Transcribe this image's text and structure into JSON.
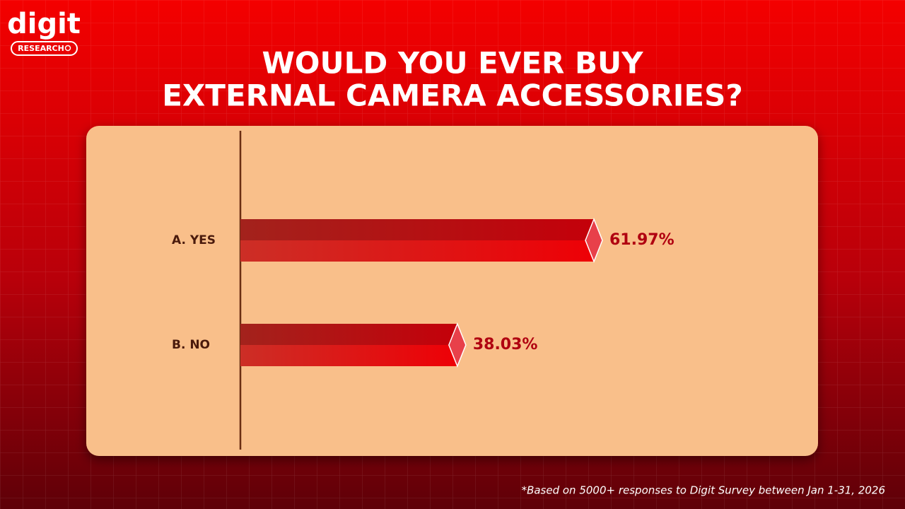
{
  "brand": {
    "name": "digit",
    "tag": "RESEARCH"
  },
  "chart_data": {
    "type": "bar",
    "orientation": "horizontal",
    "title": [
      "WOULD YOU EVER BUY",
      "EXTERNAL CAMERA ACCESSORIES?"
    ],
    "categories": [
      "A. YES",
      "B. NO"
    ],
    "values": [
      61.97,
      38.03
    ],
    "value_labels": [
      "61.97%",
      "38.03%"
    ],
    "color": "#e00a0a"
  },
  "footnote": "*Based on 5000+ responses to Digit Survey between Jan 1-31, 2026"
}
